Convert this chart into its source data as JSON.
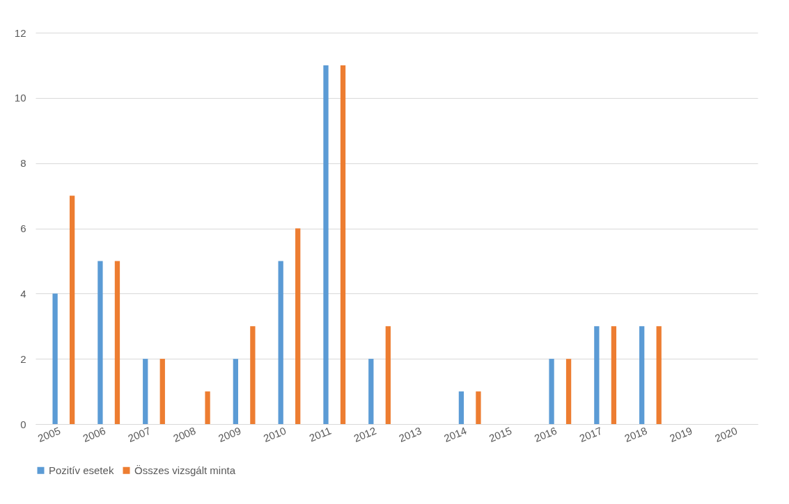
{
  "chart_data": {
    "type": "bar",
    "categories": [
      "2005",
      "2006",
      "2007",
      "2008",
      "2009",
      "2010",
      "2011",
      "2012",
      "2013",
      "2014",
      "2015",
      "2016",
      "2017",
      "2018",
      "2019",
      "2020"
    ],
    "series": [
      {
        "name": "Pozitív esetek",
        "color": "#5b9bd5",
        "values": [
          4,
          5,
          2,
          0,
          2,
          5,
          11,
          2,
          0,
          1,
          0,
          2,
          3,
          3,
          0,
          0
        ]
      },
      {
        "name": "Összes vizsgált minta",
        "color": "#ed7d31",
        "values": [
          7,
          5,
          2,
          1,
          3,
          6,
          11,
          3,
          0,
          1,
          0,
          2,
          3,
          3,
          0,
          0
        ]
      }
    ],
    "ylim": [
      0,
      12
    ],
    "yticks": [
      0,
      2,
      4,
      6,
      8,
      10,
      12
    ],
    "grid": "y",
    "legend": "bottom"
  }
}
